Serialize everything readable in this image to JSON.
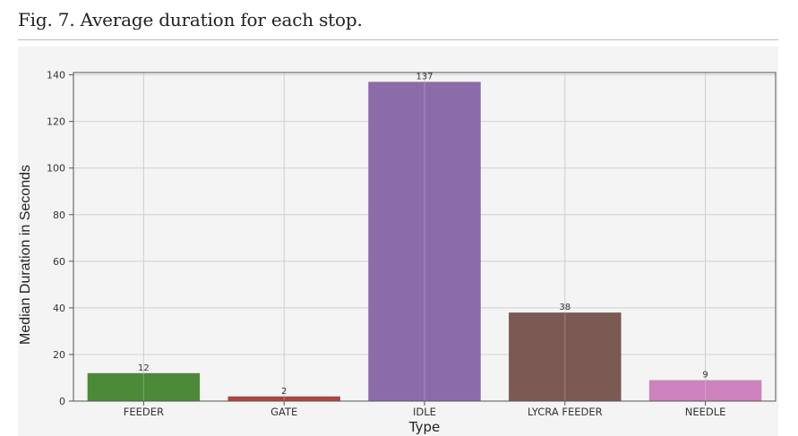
{
  "caption": "Fig. 7. Average duration for each stop.",
  "chart_data": {
    "type": "bar",
    "title": "",
    "xlabel": "Type",
    "ylabel": "Median Duration in Seconds",
    "categories": [
      "FEEDER",
      "GATE",
      "IDLE",
      "LYCRA FEEDER",
      "NEEDLE"
    ],
    "values": [
      12,
      2,
      137,
      38,
      9
    ],
    "data_labels": [
      "12",
      "2",
      "137",
      "38",
      "9"
    ],
    "colors": [
      "#4c8a3a",
      "#b1433c",
      "#8c6bab",
      "#7b5a53",
      "#ce82bd"
    ],
    "yticks": [
      0,
      20,
      40,
      60,
      80,
      100,
      120,
      140
    ],
    "ylim": [
      0,
      141
    ],
    "grid": true
  }
}
